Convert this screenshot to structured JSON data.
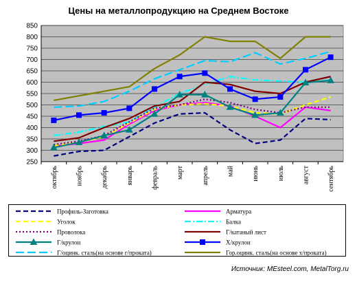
{
  "chart_data": {
    "type": "line",
    "title": "Цены на металлопродукцию на Среднем Востоке",
    "xlabel": "",
    "ylabel": "",
    "ylim": [
      250,
      850
    ],
    "yticks": [
      250,
      300,
      350,
      400,
      450,
      500,
      550,
      600,
      650,
      700,
      750,
      800,
      850
    ],
    "grid": true,
    "legend_position": "bottom",
    "categories": [
      "октябрь",
      "ноябрь",
      "декабрь",
      "январь",
      "февраль",
      "март",
      "апрель",
      "май",
      "июнь",
      "июль",
      "август",
      "сентябрь"
    ],
    "series": [
      {
        "name": "Профиль-Заготовка",
        "color": "#000080",
        "style": "dash",
        "marker": "none",
        "values": [
          275,
          295,
          300,
          360,
          420,
          460,
          465,
          390,
          330,
          345,
          440,
          435
        ]
      },
      {
        "name": "Арматура",
        "color": "#ff00ff",
        "style": "solid",
        "marker": "none",
        "values": [
          318,
          330,
          345,
          415,
          475,
          500,
          510,
          495,
          450,
          400,
          490,
          475
        ]
      },
      {
        "name": "Уголок",
        "color": "#ffff00",
        "style": "dash",
        "marker": "none",
        "values": [
          320,
          335,
          360,
          420,
          480,
          500,
          505,
          495,
          465,
          460,
          500,
          535
        ]
      },
      {
        "name": "Балка",
        "color": "#00ffff",
        "style": "dashdot",
        "marker": "none",
        "values": [
          365,
          380,
          405,
          425,
          490,
          550,
          590,
          625,
          610,
          605,
          600,
          610
        ]
      },
      {
        "name": "Проволока",
        "color": "#800080",
        "style": "dot",
        "marker": "none",
        "values": [
          325,
          340,
          365,
          425,
          485,
          500,
          525,
          510,
          480,
          465,
          490,
          490
        ]
      },
      {
        "name": "Г/катаный лист",
        "color": "#800000",
        "style": "solid",
        "marker": "none",
        "values": [
          340,
          355,
          400,
          440,
          495,
          515,
          600,
          590,
          560,
          550,
          600,
          625
        ]
      },
      {
        "name": "Г/крулон",
        "color": "#008080",
        "style": "solid",
        "marker": "triangle",
        "values": [
          312,
          335,
          365,
          390,
          460,
          545,
          545,
          490,
          455,
          465,
          598,
          608
        ]
      },
      {
        "name": "Х/крулон",
        "color": "#0000ff",
        "style": "solid",
        "marker": "square",
        "values": [
          432,
          455,
          465,
          485,
          570,
          625,
          640,
          570,
          525,
          535,
          655,
          710
        ]
      },
      {
        "name": "Г/оцинк. сталь(на основе г/проката)",
        "color": "#00ccff",
        "style": "longdash",
        "marker": "none",
        "values": [
          490,
          495,
          515,
          560,
          615,
          655,
          695,
          690,
          730,
          680,
          705,
          735
        ]
      },
      {
        "name": "Гор.оцинк. сталь(на основе х/проката)",
        "color": "#808000",
        "style": "solid",
        "marker": "none",
        "values": [
          520,
          540,
          560,
          580,
          660,
          720,
          800,
          780,
          780,
          705,
          800,
          800
        ]
      }
    ]
  },
  "source": "Источник: MEsteel.com, MetalTorg.ru"
}
